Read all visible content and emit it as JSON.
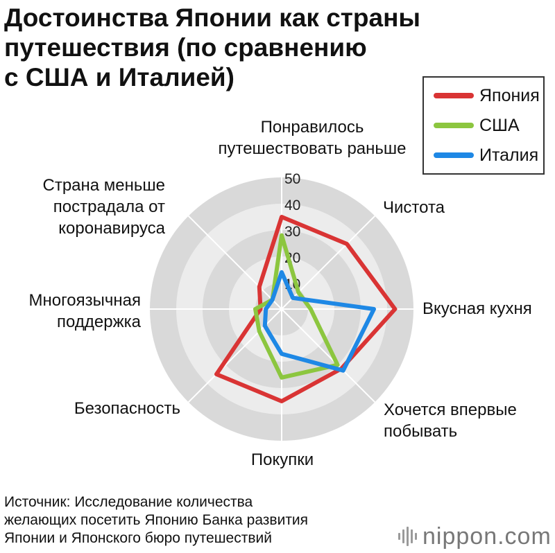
{
  "header": {
    "title": "Достоинства Японии как страны\nпутешествия (по сравнению\nс США и Италией)"
  },
  "legend": {
    "items": [
      {
        "label": "Япония",
        "color": "#d93434"
      },
      {
        "label": "США",
        "color": "#8cc63f"
      },
      {
        "label": "Италия",
        "color": "#1e88e5"
      }
    ]
  },
  "chart_data": {
    "type": "radar",
    "axes": [
      "Понравилось\nпутешествовать раньше",
      "Чистота",
      "Вкусная кухня",
      "Хочется впервые\nпобывать",
      "Покупки",
      "Безопасность",
      "Многоязычная\nподдержка",
      "Страна меньше\nпострадала от\nкоронавируса"
    ],
    "ticks": [
      10,
      20,
      30,
      40,
      50
    ],
    "rlim": [
      0,
      50
    ],
    "series": [
      {
        "name": "Япония",
        "color": "#d93434",
        "values": [
          35,
          35,
          43,
          32,
          35,
          35,
          8,
          12
        ]
      },
      {
        "name": "США",
        "color": "#8cc63f",
        "values": [
          28,
          9,
          11,
          30,
          26,
          12,
          10,
          5
        ]
      },
      {
        "name": "Италия",
        "color": "#1e88e5",
        "values": [
          14,
          6,
          35,
          33,
          17,
          9,
          6,
          5
        ]
      }
    ],
    "legend_position": "top-right"
  },
  "footer": {
    "source": "Источник: Исследование количества\nжелающих посетить Японию Банка развития\nЯпонии и Японского бюро путешествий",
    "brand_name": "nippon",
    "brand_domain": ".com"
  }
}
